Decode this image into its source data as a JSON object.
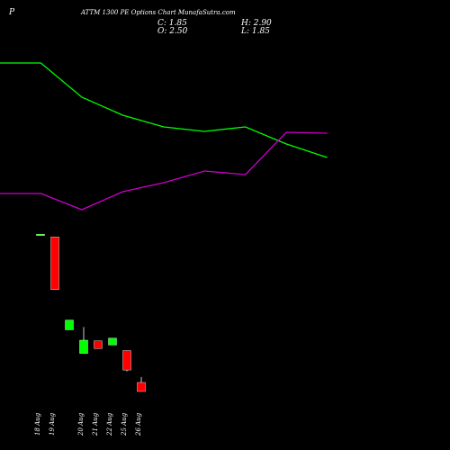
{
  "header": {
    "symbol": "P",
    "title": "ATTM 1300 PE Options Chart MunafaSutra.com",
    "close": "C: 1.85",
    "high": "H: 2.90",
    "open": "O: 2.50",
    "low": "L: 1.85"
  },
  "chart_data": [
    {
      "type": "line",
      "x": [
        0,
        1,
        2,
        3,
        4,
        5,
        6,
        7,
        8
      ],
      "xlim": [
        0,
        11
      ],
      "ylim": [
        0,
        100
      ],
      "series": [
        {
          "color": "#00ff00",
          "values": [
            72,
            72,
            56.8,
            48.8,
            43.6,
            41.6,
            43.6,
            36,
            30
          ]
        },
        {
          "color": "#cc00cc",
          "values": [
            14,
            14,
            6.8,
            14.8,
            18.8,
            24,
            22.4,
            41.2,
            40.8
          ]
        }
      ]
    },
    {
      "type": "candlestick",
      "categories": [
        "18 Aug",
        "19 Aug",
        null,
        "20 Aug",
        "21 Aug",
        "22 Aug",
        "25 Aug",
        "26 Aug"
      ],
      "ylim": [
        -2.37,
        13.86
      ],
      "up_color": "#00ff00",
      "down_color": "#ff0000",
      "open": [
        13.2,
        13.0,
        6.3,
        4.6,
        5.5,
        5.2,
        4.8,
        2.5
      ],
      "high": [
        13.2,
        13.0,
        7.0,
        6.5,
        5.5,
        5.7,
        4.8,
        2.9
      ],
      "low": [
        13.2,
        9.2,
        6.3,
        4.6,
        4.95,
        5.2,
        3.3,
        1.85
      ],
      "close": [
        13.2,
        9.2,
        7.0,
        5.55,
        4.95,
        5.7,
        3.4,
        1.85
      ]
    }
  ]
}
